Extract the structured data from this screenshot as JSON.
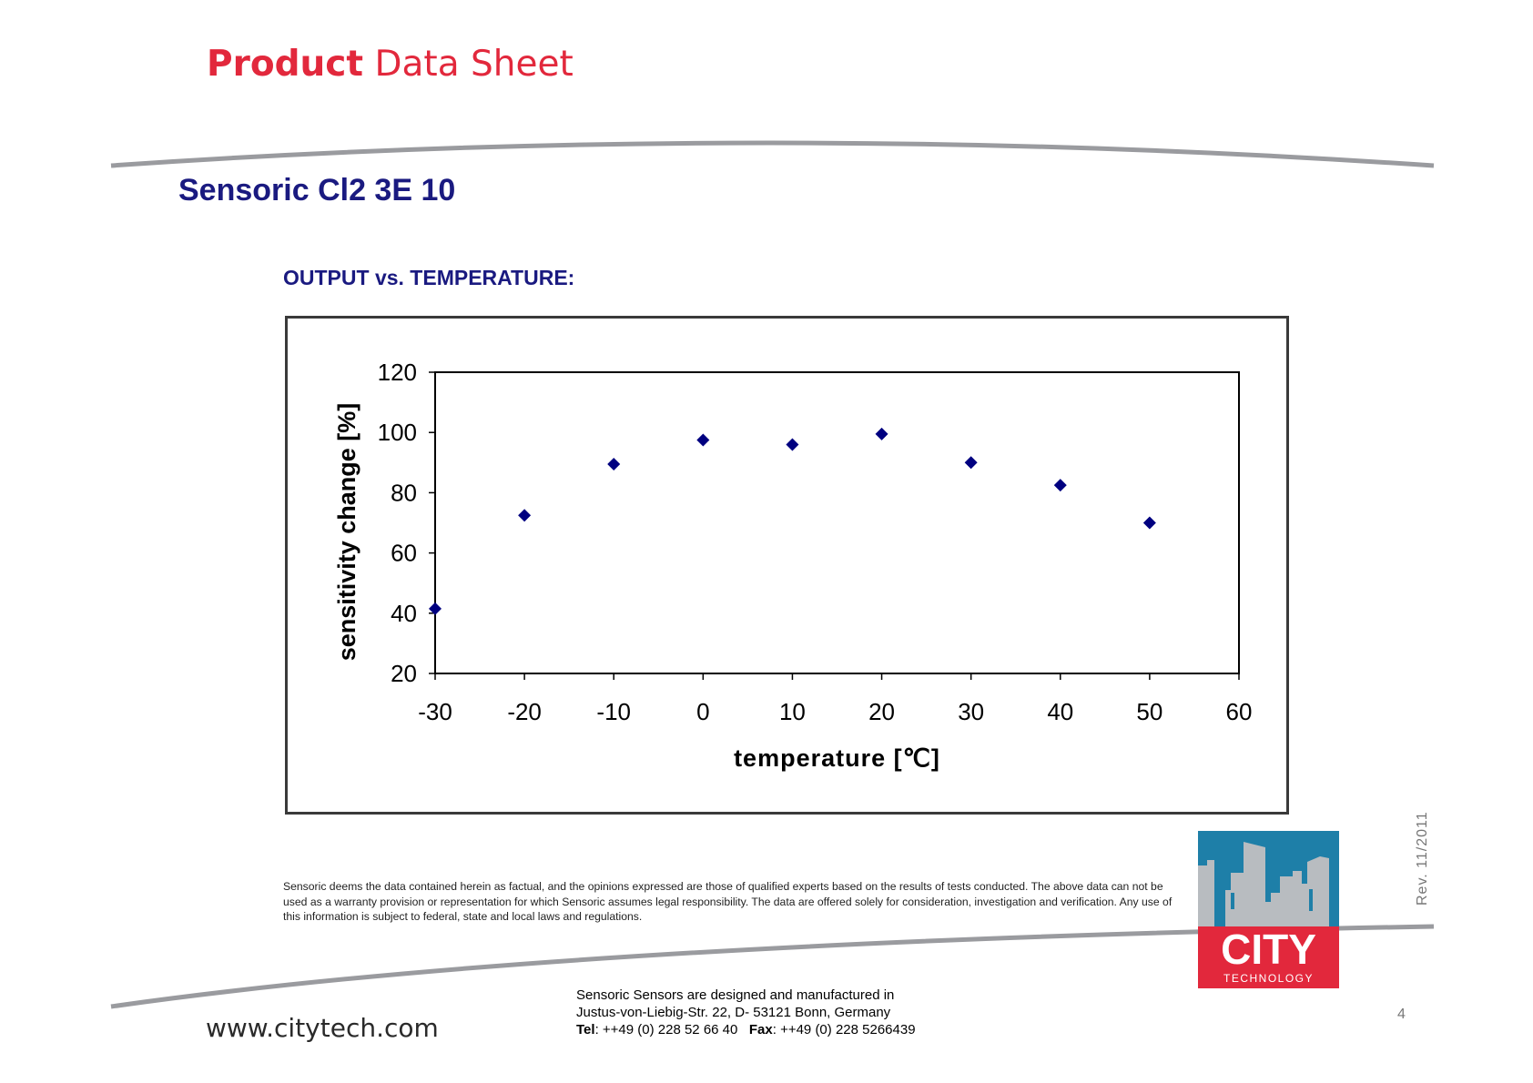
{
  "header": {
    "title_bold": "Product",
    "title_rest": "Data Sheet"
  },
  "product": {
    "name": "Sensoric Cl2 3E 10"
  },
  "section": {
    "heading": "OUTPUT vs. TEMPERATURE:"
  },
  "chart_data": {
    "type": "scatter",
    "title": "",
    "xlabel": "temperature [℃]",
    "ylabel": "sensitivity change [%]",
    "xlim": [
      -30,
      60
    ],
    "ylim": [
      20,
      120
    ],
    "xticks": [
      -30,
      -20,
      -10,
      0,
      10,
      20,
      30,
      40,
      50,
      60
    ],
    "yticks": [
      20,
      40,
      60,
      80,
      100,
      120
    ],
    "x": [
      -30,
      -20,
      -10,
      0,
      10,
      20,
      30,
      40,
      50
    ],
    "y": [
      41.5,
      72.5,
      89.5,
      97.5,
      96,
      99.5,
      90,
      82.5,
      70
    ],
    "marker": "diamond",
    "marker_color": "#000080",
    "grid": false,
    "legend": "none"
  },
  "disclaimer": "Sensoric deems the data contained herein as factual, and the opinions expressed are those of qualified experts based on the results of tests conducted. The above data can not be used as a warranty provision or representation for which Sensoric assumes legal responsibility. The data are offered solely for consideration, investigation and verification. Any use of this information is subject to federal, state and local laws and regulations.",
  "footer": {
    "website": "www.citytech.com",
    "address_line1": "Sensoric Sensors are designed and manufactured in",
    "address_line2": "Justus-von-Liebig-Str. 22, D- 53121 Bonn, Germany",
    "tel_label": "Tel",
    "tel_value": ": ++49 (0) 228 52 66 40",
    "fax_label": "Fax",
    "fax_value": ": ++49 (0) 228 5266439",
    "revision": "Rev.  11/2011",
    "page_number": "4"
  },
  "logo": {
    "word": "CITY",
    "subword": "TECHNOLOGY",
    "colors": {
      "sky": "#1e7fa8",
      "buildings": "#b8bcc0",
      "band": "#e2283c"
    }
  },
  "colors": {
    "brand_red": "#e2283c",
    "heading_navy": "#1a1a80",
    "swoosh_gray": "#9a9b9f"
  }
}
